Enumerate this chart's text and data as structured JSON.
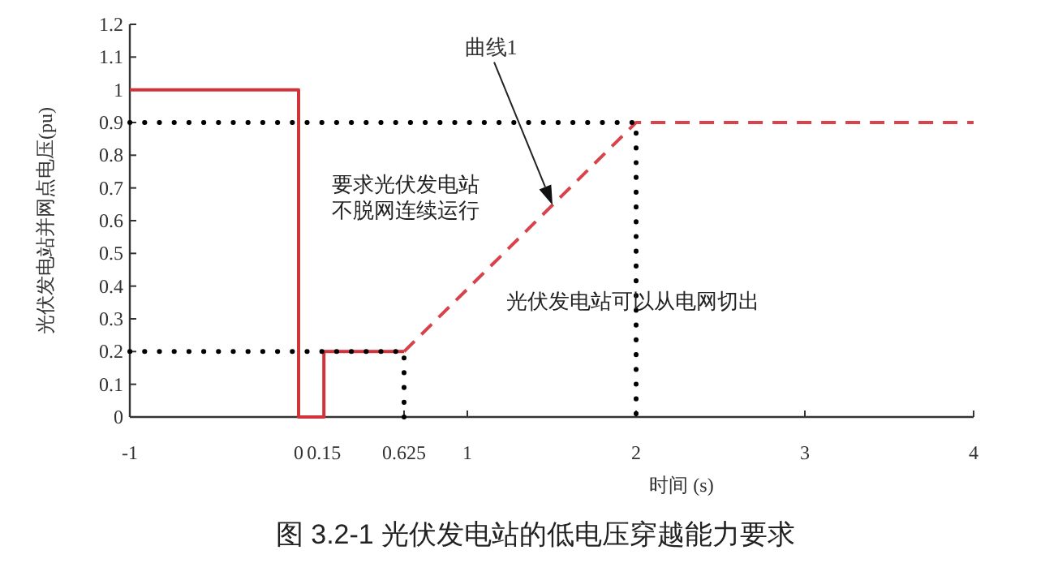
{
  "chart_data": {
    "type": "line",
    "xlabel": "时间 (s)",
    "ylabel": "光伏发电站并网点电压(pu)",
    "xlim": [
      -1,
      4
    ],
    "xticks": [
      -1,
      0,
      0.15,
      0.625,
      1,
      2,
      3,
      4
    ],
    "ylim": [
      0,
      1.2
    ],
    "yticks": [
      0,
      0.1,
      0.2,
      0.3,
      0.4,
      0.5,
      0.6,
      0.7,
      0.8,
      0.9,
      1,
      1.1,
      1.2
    ],
    "grid": false,
    "marker": "none",
    "series": [
      {
        "color": "#d0343a",
        "line_style": "solid",
        "x": [
          -1,
          0,
          0,
          0.15,
          0.15,
          0.625
        ],
        "values": [
          1,
          1,
          0,
          0,
          0.2,
          0.2
        ]
      },
      {
        "color": "#d9424a",
        "line_style": "dashed",
        "x": [
          0.625,
          2,
          4
        ],
        "values": [
          0.2,
          0.9,
          0.9
        ]
      },
      {
        "color": "#000000",
        "line_style": "dotted",
        "x": [
          -1,
          2,
          2
        ],
        "values": [
          0.9,
          0.9,
          0
        ]
      },
      {
        "color": "#000000",
        "line_style": "dotted",
        "x": [
          -1,
          0.625,
          0.625
        ],
        "values": [
          0.2,
          0.2,
          0
        ]
      }
    ],
    "annotations": [
      "曲线1",
      "要求光伏发电站",
      "不脱网连续运行",
      "光伏发电站可以从电网切出",
      "图 3.2-1  光伏发电站的低电压穿越能力要求"
    ]
  }
}
